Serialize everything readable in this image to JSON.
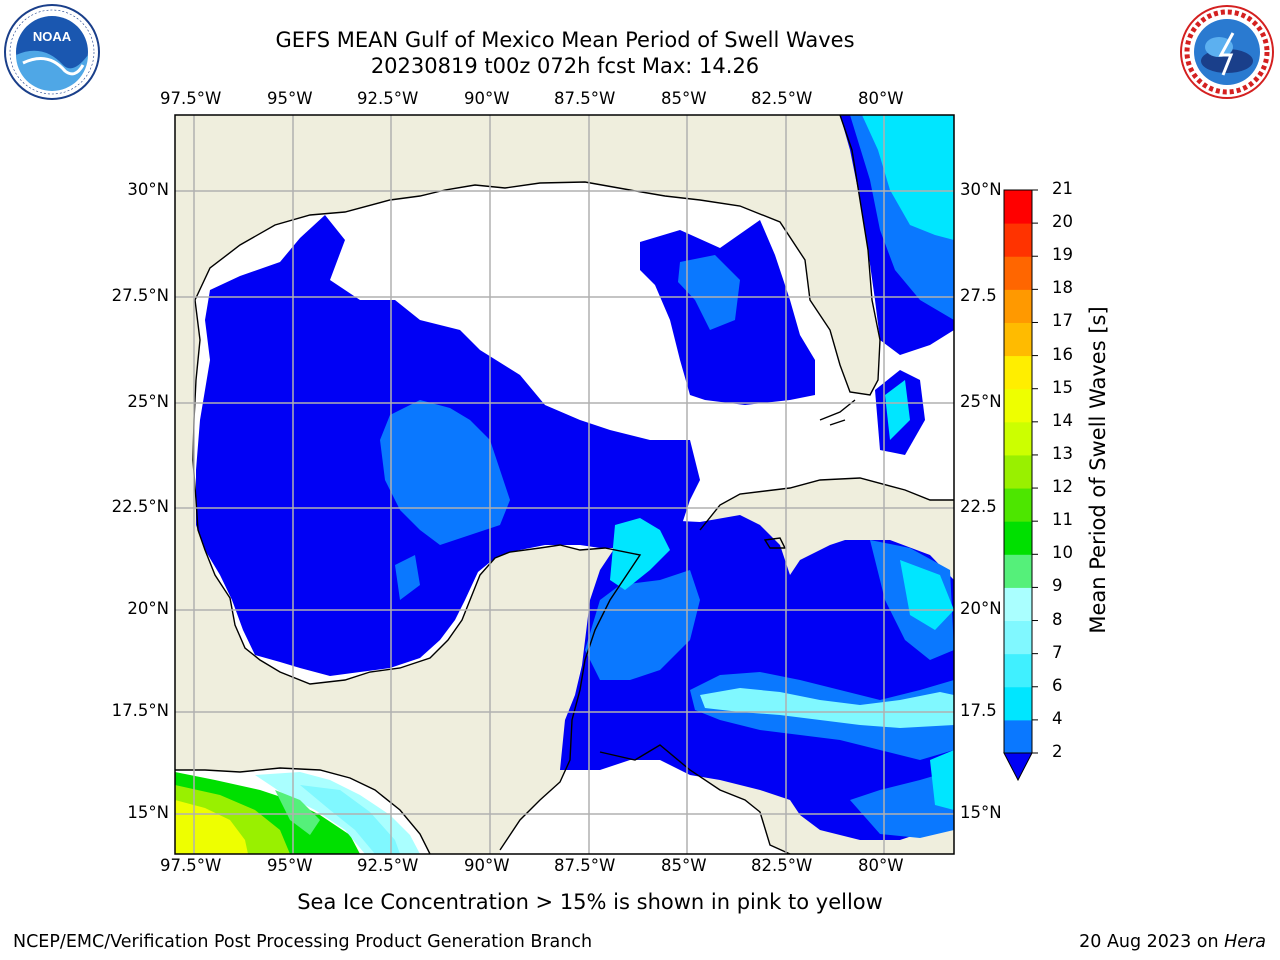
{
  "title": "GEFS MEAN Gulf of Mexico Mean Period of Swell Waves",
  "subtitle": "20230819 t00z 072h fcst   Max: 14.26",
  "note": "Sea Ice Concentration > 15% is shown in pink to yellow",
  "footer_left": "NCEP/EMC/Verification Post Processing Product Generation Branch",
  "footer_date": "20 Aug 2023 on ",
  "footer_machine": "Hera",
  "logos": {
    "left": "noaa-logo",
    "right": "nws-logo"
  },
  "map": {
    "lon_labels": [
      "97.5°W",
      "95°W",
      "92.5°W",
      "90°W",
      "87.5°W",
      "85°W",
      "82.5°W",
      "80°W"
    ],
    "lat_labels_left": [
      "30°N",
      "27.5°N",
      "25°N",
      "22.5°N",
      "20°N",
      "17.5°N",
      "15°N"
    ],
    "lat_labels_right": [
      "30°N",
      "27.5",
      "25°N",
      "22.5",
      "20°N",
      "17.5",
      "15°N"
    ],
    "lon_range": [
      -98,
      -78.2
    ],
    "lat_range": [
      14,
      31.8
    ],
    "colors": {
      "land": "#efeedd",
      "ocean": "#ffffff",
      "grid": "#b0b0b0"
    }
  },
  "colorbar": {
    "label": "Mean Period of Swell Waves [s]",
    "ticks": [
      "2",
      "4",
      "6",
      "7",
      "8",
      "9",
      "10",
      "11",
      "12",
      "13",
      "14",
      "15",
      "16",
      "17",
      "18",
      "19",
      "20",
      "21"
    ],
    "colors": [
      "#0000f5",
      "#0a78ff",
      "#00e6ff",
      "#40f0ff",
      "#80f8ff",
      "#aaffff",
      "#55f07a",
      "#00e000",
      "#4de600",
      "#99f000",
      "#ccff00",
      "#eeff00",
      "#ffee00",
      "#ffbb00",
      "#ff9900",
      "#ff6600",
      "#ff3300",
      "#ff0000"
    ]
  }
}
